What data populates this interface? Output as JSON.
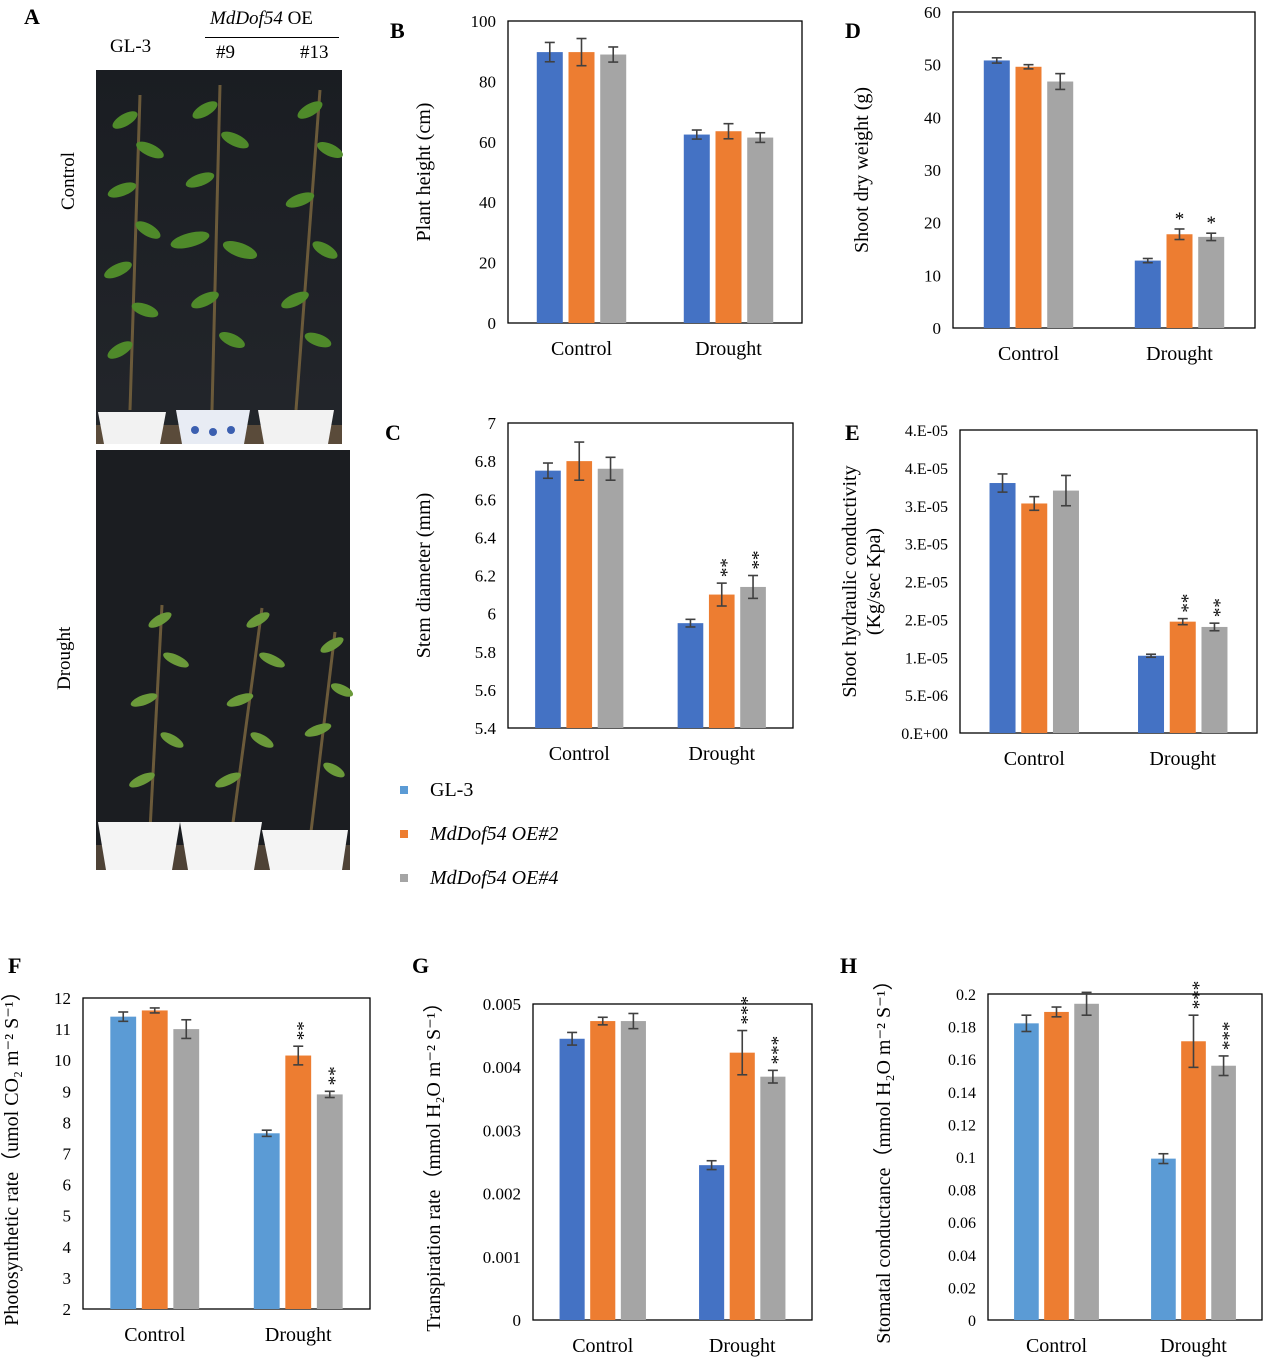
{
  "colors": {
    "gl3_dark": "#4472C4",
    "gl3_light": "#5B9BD5",
    "oe2": "#ED7D31",
    "oe4": "#A5A5A5",
    "error_bar": "#404040"
  },
  "photo_panel": {
    "letter": "A",
    "header_line": "GL-3",
    "oe_prefix": "MdDof54",
    "oe_suffix": " OE",
    "line_a": "#9",
    "line_b": "#13",
    "row_control": "Control",
    "row_drought": "Drought"
  },
  "legend": {
    "items": [
      {
        "label": "GL-3",
        "italic": false,
        "color": "#5B9BD5"
      },
      {
        "label": "MdDof54 OE#2",
        "italic": true,
        "color": "#ED7D31"
      },
      {
        "label": "MdDof54 OE#4",
        "italic": true,
        "color": "#A5A5A5"
      }
    ]
  },
  "chart_data": [
    {
      "panel": "B",
      "type": "bar",
      "ylabel": "Plant height (cm)",
      "categories": [
        "Control",
        "Drought"
      ],
      "ylim": [
        0,
        100
      ],
      "yticks": [
        "0",
        "20",
        "40",
        "60",
        "80",
        "100"
      ],
      "series": [
        {
          "values": [
            89.7,
            62.4
          ],
          "errors": [
            3.2,
            1.5
          ],
          "color": "#4472C4",
          "sig": [
            "",
            ""
          ]
        },
        {
          "values": [
            89.7,
            63.5
          ],
          "errors": [
            4.5,
            2.5
          ],
          "color": "#ED7D31",
          "sig": [
            "",
            ""
          ]
        },
        {
          "values": [
            88.9,
            61.4
          ],
          "errors": [
            2.5,
            1.6
          ],
          "color": "#A5A5A5",
          "sig": [
            "",
            ""
          ]
        }
      ]
    },
    {
      "panel": "C",
      "type": "bar",
      "ylabel": "Stem diameter (mm)",
      "categories": [
        "Control",
        "Drought"
      ],
      "ylim": [
        5.4,
        7
      ],
      "yticks": [
        "5.4",
        "5.6",
        "5.8",
        "6",
        "6.2",
        "6.4",
        "6.6",
        "6.8",
        "7"
      ],
      "series": [
        {
          "values": [
            6.75,
            5.95
          ],
          "errors": [
            0.04,
            0.02
          ],
          "color": "#4472C4",
          "sig": [
            "",
            ""
          ]
        },
        {
          "values": [
            6.8,
            6.1
          ],
          "errors": [
            0.1,
            0.06
          ],
          "color": "#ED7D31",
          "sig": [
            "",
            "**"
          ]
        },
        {
          "values": [
            6.76,
            6.14
          ],
          "errors": [
            0.06,
            0.06
          ],
          "color": "#A5A5A5",
          "sig": [
            "",
            "**"
          ]
        }
      ]
    },
    {
      "panel": "D",
      "type": "bar",
      "ylabel": "Shoot dry weight (g)",
      "categories": [
        "Control",
        "Drought"
      ],
      "ylim": [
        0,
        60
      ],
      "yticks": [
        "0",
        "10",
        "20",
        "30",
        "40",
        "50",
        "60"
      ],
      "series": [
        {
          "values": [
            50.8,
            12.8
          ],
          "errors": [
            0.5,
            0.4
          ],
          "color": "#4472C4",
          "sig": [
            "",
            ""
          ]
        },
        {
          "values": [
            49.6,
            17.8
          ],
          "errors": [
            0.4,
            1.0
          ],
          "color": "#ED7D31",
          "sig": [
            "",
            "*"
          ]
        },
        {
          "values": [
            46.8,
            17.3
          ],
          "errors": [
            1.5,
            0.7
          ],
          "color": "#A5A5A5",
          "sig": [
            "",
            "*"
          ]
        }
      ]
    },
    {
      "panel": "E",
      "type": "bar",
      "ylabel": "Shoot hydraulic conductivity",
      "ylabel2": "(Kg/sec Kpa)",
      "categories": [
        "Control",
        "Drought"
      ],
      "ylim": [
        0,
        4e-05
      ],
      "yticks": [
        "0.E+00",
        "5.E-06",
        "1.E-05",
        "2.E-05",
        "2.E-05",
        "3.E-05",
        "3.E-05",
        "4.E-05",
        "4.E-05"
      ],
      "series": [
        {
          "values": [
            3.3e-05,
            1.02e-05
          ],
          "errors": [
            1.2e-06,
            2e-07
          ],
          "color": "#4472C4",
          "sig": [
            "",
            ""
          ]
        },
        {
          "values": [
            3.03e-05,
            1.47e-05
          ],
          "errors": [
            9e-07,
            4e-07
          ],
          "color": "#ED7D31",
          "sig": [
            "",
            "**"
          ]
        },
        {
          "values": [
            3.2e-05,
            1.4e-05
          ],
          "errors": [
            2e-06,
            5e-07
          ],
          "color": "#A5A5A5",
          "sig": [
            "",
            "**"
          ]
        }
      ]
    },
    {
      "panel": "F",
      "type": "bar",
      "ylabel": "Photosynthetic rate（umol CO₂ m⁻² S⁻¹）",
      "categories": [
        "Control",
        "Drought"
      ],
      "ylim": [
        2,
        12
      ],
      "yticks": [
        "2",
        "3",
        "4",
        "5",
        "6",
        "7",
        "8",
        "9",
        "10",
        "11",
        "12"
      ],
      "series": [
        {
          "values": [
            11.4,
            7.65
          ],
          "errors": [
            0.15,
            0.1
          ],
          "color": "#5B9BD5",
          "sig": [
            "",
            ""
          ]
        },
        {
          "values": [
            11.6,
            10.15
          ],
          "errors": [
            0.08,
            0.3
          ],
          "color": "#ED7D31",
          "sig": [
            "",
            "**"
          ]
        },
        {
          "values": [
            11.0,
            8.9
          ],
          "errors": [
            0.3,
            0.1
          ],
          "color": "#A5A5A5",
          "sig": [
            "",
            "**"
          ]
        }
      ]
    },
    {
      "panel": "G",
      "type": "bar",
      "ylabel": "Transpiration rate（mmol H₂O m⁻² S⁻¹）",
      "categories": [
        "Control",
        "Drought"
      ],
      "ylim": [
        0,
        0.005
      ],
      "yticks": [
        "0",
        "0.001",
        "0.002",
        "0.003",
        "0.004",
        "0.005"
      ],
      "series": [
        {
          "values": [
            0.00445,
            0.00245
          ],
          "errors": [
            0.0001,
            7e-05
          ],
          "color": "#4472C4",
          "sig": [
            "",
            ""
          ]
        },
        {
          "values": [
            0.00473,
            0.00423
          ],
          "errors": [
            6e-05,
            0.00035
          ],
          "color": "#ED7D31",
          "sig": [
            "",
            "***"
          ]
        },
        {
          "values": [
            0.00473,
            0.00385
          ],
          "errors": [
            0.00012,
            0.0001
          ],
          "color": "#A5A5A5",
          "sig": [
            "",
            "***"
          ]
        }
      ]
    },
    {
      "panel": "H",
      "type": "bar",
      "ylabel": "Stomatal conductance（mmol H₂O m⁻² S⁻¹）",
      "categories": [
        "Control",
        "Drought"
      ],
      "ylim": [
        0,
        0.2
      ],
      "yticks": [
        "0",
        "0.02",
        "0.04",
        "0.06",
        "0.08",
        "0.1",
        "0.12",
        "0.14",
        "0.16",
        "0.18",
        "0.2"
      ],
      "series": [
        {
          "values": [
            0.182,
            0.099
          ],
          "errors": [
            0.005,
            0.003
          ],
          "color": "#5B9BD5",
          "sig": [
            "",
            ""
          ]
        },
        {
          "values": [
            0.189,
            0.171
          ],
          "errors": [
            0.003,
            0.016
          ],
          "color": "#ED7D31",
          "sig": [
            "",
            "***"
          ]
        },
        {
          "values": [
            0.194,
            0.156
          ],
          "errors": [
            0.007,
            0.006
          ],
          "color": "#A5A5A5",
          "sig": [
            "",
            "***"
          ]
        }
      ]
    }
  ]
}
